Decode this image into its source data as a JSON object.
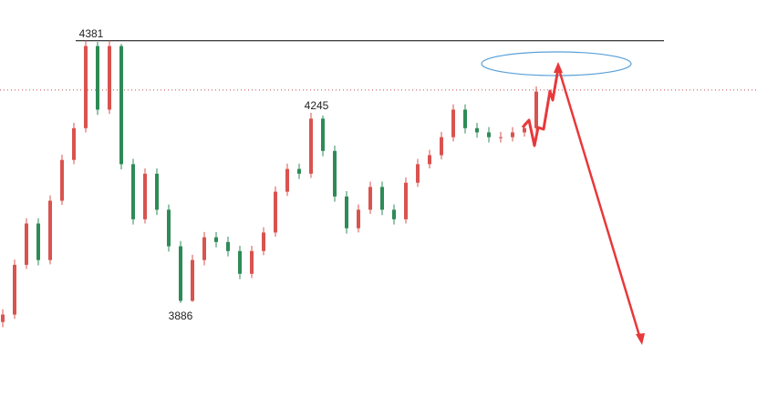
{
  "chart_data": {
    "type": "candlestick",
    "up_color": "#d9534f",
    "down_color": "#2e8b57",
    "open": [
      3850,
      3864,
      3958,
      4036,
      3967,
      4079,
      4156,
      4216,
      4371,
      4251,
      4371,
      4148,
      4044,
      4130,
      4062,
      3993,
      3890,
      3967,
      4010,
      4001,
      3984,
      3941,
      3984,
      4019,
      4096,
      4139,
      4130,
      4234,
      4173,
      4087,
      4027,
      4062,
      4105,
      4062,
      4044,
      4113,
      4148,
      4165,
      4199,
      4251,
      4216,
      4208,
      4199,
      4199,
      4208,
      4216
    ],
    "high": [
      3874,
      3968,
      4046,
      4046,
      4089,
      4166,
      4226,
      4381,
      4379,
      4381,
      4375,
      4158,
      4140,
      4140,
      4072,
      4003,
      3977,
      4020,
      4020,
      4011,
      3994,
      3994,
      4029,
      4106,
      4149,
      4149,
      4245,
      4240,
      4183,
      4097,
      4072,
      4115,
      4115,
      4072,
      4123,
      4158,
      4175,
      4209,
      4261,
      4261,
      4226,
      4218,
      4209,
      4218,
      4226,
      4295
    ],
    "low": [
      3840,
      3856,
      3950,
      3957,
      3959,
      4071,
      4148,
      4208,
      4241,
      4243,
      4138,
      4034,
      4036,
      4052,
      3983,
      3886,
      3888,
      3957,
      3991,
      3974,
      3931,
      3933,
      3976,
      4011,
      4088,
      4120,
      4122,
      4163,
      4077,
      4017,
      4019,
      4054,
      4052,
      4034,
      4036,
      4105,
      4140,
      4157,
      4191,
      4206,
      4198,
      4189,
      4189,
      4191,
      4200,
      4208
    ],
    "close": [
      3864,
      3958,
      4036,
      3967,
      4079,
      4156,
      4216,
      4371,
      4251,
      4371,
      4148,
      4044,
      4130,
      4062,
      3993,
      3890,
      3967,
      4010,
      4001,
      3984,
      3941,
      3984,
      4019,
      4096,
      4139,
      4130,
      4234,
      4173,
      4087,
      4027,
      4062,
      4105,
      4062,
      4044,
      4113,
      4148,
      4165,
      4199,
      4251,
      4216,
      4208,
      4199,
      4199,
      4208,
      4216,
      4285
    ],
    "ylim": [
      3700,
      4458
    ],
    "annotations": [
      {
        "value": 4381,
        "label": "4381"
      },
      {
        "value": 4245,
        "label": "4245"
      },
      {
        "value": 3886,
        "label": "3886"
      }
    ],
    "resistance": 4381,
    "price_line": 4288
  }
}
